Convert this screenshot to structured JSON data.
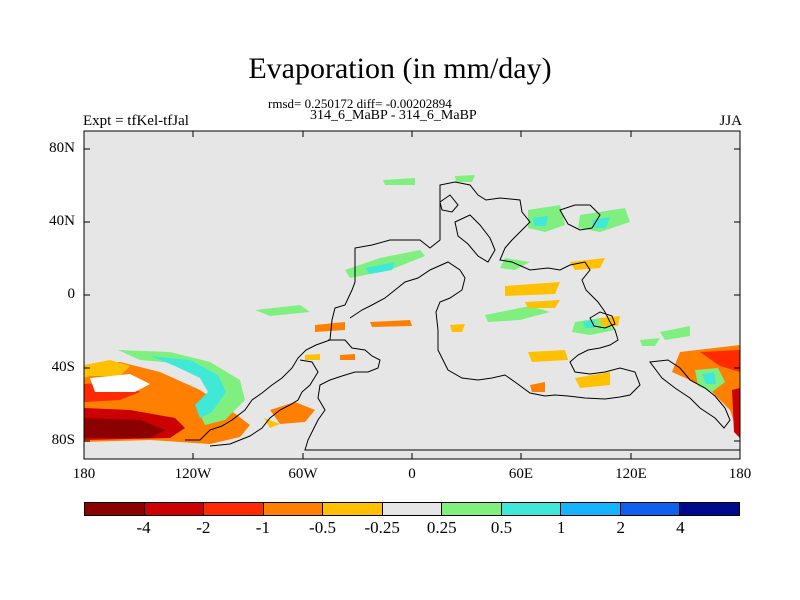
{
  "title": "Evaporation (in mm/day)",
  "stats": "rmsd= 0.250172 diff= -0.00202894",
  "subtitle": "314_6_MaBP - 314_6_MaBP",
  "left_label": "Expt = tfKel-tfJal",
  "right_label": "JJA",
  "lat_labels": [
    "80N",
    "40N",
    "0",
    "40S",
    "80S"
  ],
  "lon_labels": [
    "180",
    "120W",
    "60W",
    "0",
    "60E",
    "120E",
    "180"
  ],
  "colorbar": {
    "colors": [
      "#8b0000",
      "#cc0000",
      "#ff2a00",
      "#ff7f00",
      "#ffc000",
      "#e6e6e6",
      "#7ff07f",
      "#40e8d8",
      "#16b4ff",
      "#1060f0",
      "#000a8c"
    ],
    "labels": [
      "-4",
      "-2",
      "-1",
      "-0.5",
      "-0.25",
      "0.25",
      "0.5",
      "1",
      "2",
      "4"
    ]
  }
}
